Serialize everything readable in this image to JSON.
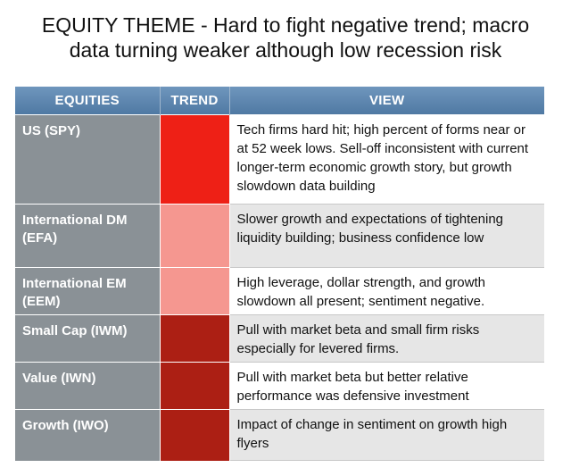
{
  "title": {
    "line1": "EQUITY THEME - Hard to fight negative trend; macro",
    "line2": "data turning weaker although low recession risk"
  },
  "table": {
    "headers": [
      "EQUITIES",
      "TREND",
      "VIEW"
    ],
    "rows": [
      {
        "equity": "US  (SPY)",
        "trend_color": "#ee2016",
        "view_bg": "#ffffff",
        "view": "Tech firms hard hit; high percent of forms near or at 52 week lows. Sell-off inconsistent with current longer-term economic growth story, but growth slowdown data building"
      },
      {
        "equity": "International DM (EFA)",
        "trend_color": "#f59790",
        "view_bg": "#e6e6e6",
        "view": "Slower growth and expectations of tightening liquidity building; business confidence low"
      },
      {
        "equity": "International EM (EEM)",
        "trend_color": "#f59790",
        "view_bg": "#ffffff",
        "view": "High leverage, dollar strength, and growth slowdown all present; sentiment negative."
      },
      {
        "equity": "Small Cap (IWM)",
        "trend_color": "#ac1f14",
        "view_bg": "#e6e6e6",
        "view": "Pull with market beta and small firm risks especially for levered firms."
      },
      {
        "equity": "Value (IWN)",
        "trend_color": "#ac1f14",
        "view_bg": "#ffffff",
        "view": "Pull with market beta but better relative performance was defensive investment"
      },
      {
        "equity": "Growth (IWO)",
        "trend_color": "#ac1f14",
        "view_bg": "#e6e6e6",
        "view": "Impact of change in sentiment on growth high flyers"
      }
    ]
  }
}
